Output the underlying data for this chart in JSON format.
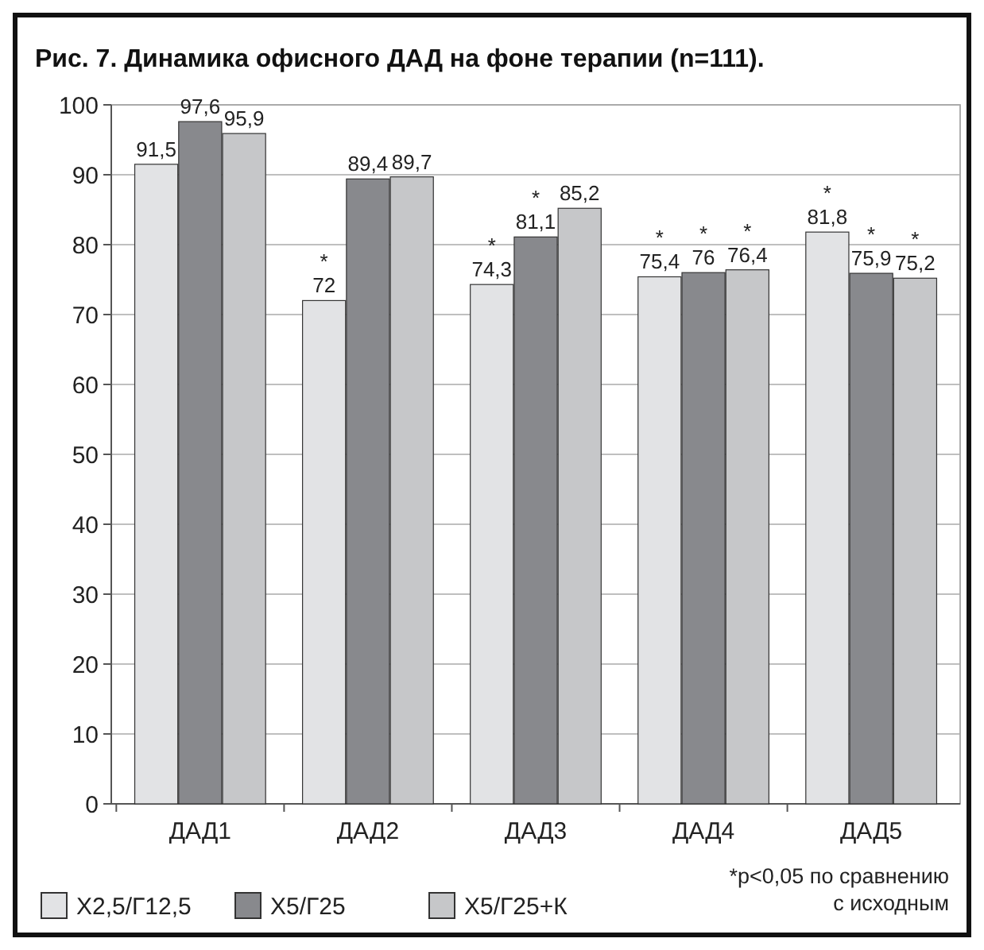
{
  "chart_data": {
    "type": "bar",
    "title": "Рис. 7. Динамика офисного ДАД на фоне терапии (n=111).",
    "categories": [
      "ДАД1",
      "ДАД2",
      "ДАД3",
      "ДАД4",
      "ДАД5"
    ],
    "series": [
      {
        "name": "Х2,5/Г12,5",
        "color": "#e2e3e5",
        "values": [
          91.5,
          72,
          74.3,
          75.4,
          81.8
        ],
        "value_labels": [
          "91,5",
          "*\n72",
          "*\n74,3",
          "*\n75,4",
          "*\n81,8"
        ]
      },
      {
        "name": "Х5/Г25",
        "color": "#88898d",
        "values": [
          97.6,
          89.4,
          81.1,
          76,
          75.9
        ],
        "value_labels": [
          "97,6",
          "89,4",
          "*\n81,1",
          "*\n76",
          "*\n75,9"
        ]
      },
      {
        "name": "Х5/Г25+К",
        "color": "#c6c7c9",
        "values": [
          95.9,
          89.7,
          85.2,
          76.4,
          75.2
        ],
        "value_labels": [
          "95,9",
          "89,7",
          "85,2",
          "*\n76,4",
          "*\n75,2"
        ]
      }
    ],
    "ylim": [
      0,
      100
    ],
    "yticks": [
      0,
      10,
      20,
      30,
      40,
      50,
      60,
      70,
      80,
      90,
      100
    ],
    "grid": "y",
    "legend": "bottom",
    "annotations": [
      "*p<0,05 по сравнению с исходным"
    ]
  }
}
